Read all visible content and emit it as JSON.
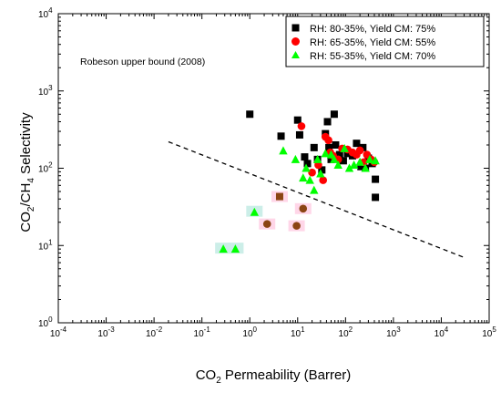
{
  "chart_data": {
    "type": "scatter",
    "xscale": "log",
    "yscale": "log",
    "xlim": [
      0.0001,
      100000
    ],
    "ylim": [
      1,
      10000
    ],
    "xlabel": "CO₂ Permeability (Barrer)",
    "ylabel": "CO₂/CH₄ Selectivity",
    "x_tick_base": "10",
    "x_tick_exponents": [
      "-4",
      "-3",
      "-2",
      "-1",
      "0",
      "1",
      "2",
      "3",
      "4",
      "5"
    ],
    "y_tick_base": "10",
    "y_tick_exponents": [
      "0",
      "1",
      "2",
      "3",
      "4"
    ],
    "legend_position": "top-right",
    "series": [
      {
        "name": "RH: 80-35%, Yield CM: 75%",
        "marker": "square",
        "color": "#000000",
        "points": [
          [
            1.0,
            500
          ],
          [
            4.5,
            260
          ],
          [
            10,
            420
          ],
          [
            11,
            270
          ],
          [
            14,
            140
          ],
          [
            16,
            115
          ],
          [
            22,
            185
          ],
          [
            26,
            130
          ],
          [
            32,
            95
          ],
          [
            38,
            280
          ],
          [
            42,
            400
          ],
          [
            45,
            185
          ],
          [
            50,
            130
          ],
          [
            58,
            500
          ],
          [
            62,
            200
          ],
          [
            75,
            150
          ],
          [
            90,
            125
          ],
          [
            110,
            155
          ],
          [
            140,
            145
          ],
          [
            170,
            210
          ],
          [
            210,
            105
          ],
          [
            230,
            185
          ],
          [
            260,
            100
          ],
          [
            300,
            135
          ],
          [
            360,
            115
          ],
          [
            420,
            72
          ],
          [
            420,
            42
          ]
        ]
      },
      {
        "name": "RH: 65-35%, Yield CM: 55%",
        "marker": "circle",
        "color": "#ff0000",
        "points": [
          [
            12,
            350
          ],
          [
            20,
            88
          ],
          [
            27,
            110
          ],
          [
            34,
            70
          ],
          [
            38,
            255
          ],
          [
            44,
            230
          ],
          [
            48,
            160
          ],
          [
            55,
            145
          ],
          [
            70,
            130
          ],
          [
            85,
            180
          ],
          [
            110,
            175
          ],
          [
            140,
            160
          ],
          [
            170,
            150
          ],
          [
            200,
            170
          ],
          [
            240,
            120
          ],
          [
            280,
            150
          ],
          [
            340,
            130
          ],
          [
            400,
            120
          ]
        ]
      },
      {
        "name": "RH: 55-35%, Yield CM: 70%",
        "marker": "triangle",
        "color": "#00ff00",
        "points": [
          [
            0.28,
            9
          ],
          [
            0.5,
            9
          ],
          [
            1.25,
            27
          ],
          [
            5,
            168
          ],
          [
            9,
            130
          ],
          [
            13,
            75
          ],
          [
            15,
            100
          ],
          [
            18,
            70
          ],
          [
            22,
            52
          ],
          [
            26,
            130
          ],
          [
            30,
            85
          ],
          [
            38,
            155
          ],
          [
            50,
            150
          ],
          [
            58,
            130
          ],
          [
            70,
            110
          ],
          [
            95,
            180
          ],
          [
            120,
            100
          ],
          [
            150,
            110
          ],
          [
            200,
            120
          ],
          [
            260,
            100
          ],
          [
            320,
            130
          ],
          [
            420,
            125
          ]
        ]
      },
      {
        "name": "",
        "marker": "square",
        "color": "#8b4513",
        "highlight": "#ffd6e8",
        "points": [
          [
            4.2,
            43
          ]
        ]
      },
      {
        "name": "",
        "marker": "circle",
        "color": "#8b4513",
        "highlight": "#ffd6e8",
        "points": [
          [
            2.3,
            19
          ],
          [
            9.5,
            18
          ],
          [
            13,
            30
          ]
        ]
      }
    ],
    "triangle_highlight": "#cceee8",
    "upper_bound": {
      "label": "Robeson upper bound (2008)",
      "points": [
        [
          0.02,
          220
        ],
        [
          30000,
          7
        ]
      ]
    }
  }
}
